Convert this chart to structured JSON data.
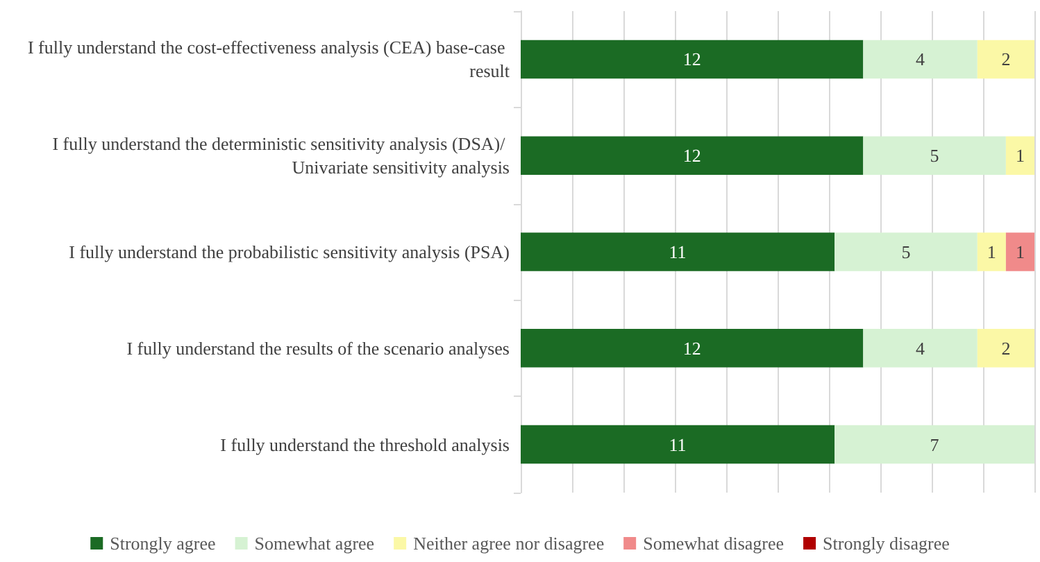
{
  "chart_data": {
    "type": "bar",
    "orientation": "horizontal",
    "stacked": true,
    "data_labels": true,
    "grid": "x",
    "legend": "bottom",
    "tick_labels": "y",
    "categories": [
      "I fully understand the cost-effectiveness analysis (CEA) base-case result",
      "I fully understand the deterministic sensitivity analysis (DSA)/ Univariate sensitivity analysis",
      "I fully understand the probabilistic sensitivity analysis (PSA)",
      "I fully understand the results of the scenario analyses",
      "I fully understand the threshold analysis"
    ],
    "xlim": [
      0,
      18
    ],
    "xticks": [
      {
        "value": 0,
        "label": null
      },
      {
        "value": 1.8,
        "label": null
      },
      {
        "value": 3.6,
        "label": null
      },
      {
        "value": 5.4,
        "label": null
      },
      {
        "value": 7.2,
        "label": null
      },
      {
        "value": 9,
        "label": null
      },
      {
        "value": 10.8,
        "label": null
      },
      {
        "value": 12.6,
        "label": null
      },
      {
        "value": 14.4,
        "label": null
      },
      {
        "value": 16.2,
        "label": null
      },
      {
        "value": 18,
        "label": null
      }
    ],
    "series": [
      {
        "name": "Strongly agree",
        "color": "#1b6b24",
        "values": [
          12,
          12,
          11,
          12,
          11
        ]
      },
      {
        "name": "Somewhat agree",
        "color": "#d6f2d3",
        "values": [
          4,
          5,
          5,
          4,
          7
        ]
      },
      {
        "name": "Neither agree nor disagree",
        "color": "#fbf8a6",
        "values": [
          2,
          1,
          1,
          2,
          null
        ]
      },
      {
        "name": "Somewhat disagree",
        "color": "#f08a8a",
        "values": [
          null,
          null,
          1,
          null,
          null
        ]
      },
      {
        "name": "Strongly disagree",
        "color": "#b00000",
        "values": [
          null,
          null,
          null,
          null,
          null
        ]
      }
    ]
  }
}
